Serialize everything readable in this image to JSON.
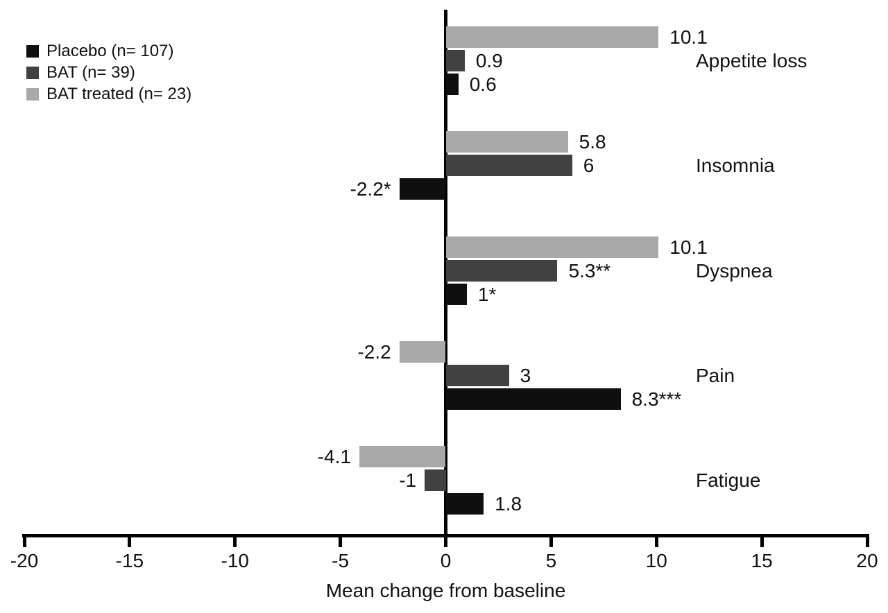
{
  "chart_data": {
    "type": "bar",
    "orientation": "horizontal",
    "title": "",
    "xlabel": "Mean change from baseline",
    "ylabel": "",
    "xlim": [
      -20,
      20
    ],
    "xtick_values": [
      -20,
      -15,
      -10,
      -5,
      0,
      5,
      10,
      15,
      20
    ],
    "xticks": [
      "-20",
      "-15",
      "-10",
      "-5",
      "0",
      "5",
      "10",
      "15",
      "20"
    ],
    "grid": false,
    "categories": [
      "Appetite loss",
      "Insomnia",
      "Dyspnea",
      "Pain",
      "Fatigue"
    ],
    "series": [
      {
        "name": "BAT treated (n= 23)",
        "color": "#a9a9a9",
        "values": [
          10.1,
          5.8,
          10.1,
          -2.2,
          -4.1
        ],
        "value_labels": [
          "10.1",
          "5.8",
          "10.1",
          "-2.2",
          "-4.1"
        ]
      },
      {
        "name": "BAT (n= 39)",
        "color": "#414141",
        "values": [
          0.9,
          6,
          5.3,
          3,
          -1
        ],
        "value_labels": [
          "0.9",
          "6",
          "5.3**",
          "3",
          "-1"
        ]
      },
      {
        "name": "Placebo (n= 107)",
        "color": "#0f0f0f",
        "values": [
          0.6,
          -2.2,
          1,
          8.3,
          1.8
        ],
        "value_labels": [
          "0.6",
          "-2.2*",
          "1*",
          "8.3***",
          "1.8"
        ]
      }
    ],
    "legend": {
      "position": "top-left",
      "items": [
        {
          "label": "Placebo (n= 107)",
          "color": "#0f0f0f"
        },
        {
          "label": "BAT (n= 39)",
          "color": "#414141"
        },
        {
          "label": "BAT treated (n= 23)",
          "color": "#a9a9a9"
        }
      ]
    },
    "colors": {
      "axis": "#000000",
      "text": "#111111",
      "background": "#ffffff"
    }
  }
}
